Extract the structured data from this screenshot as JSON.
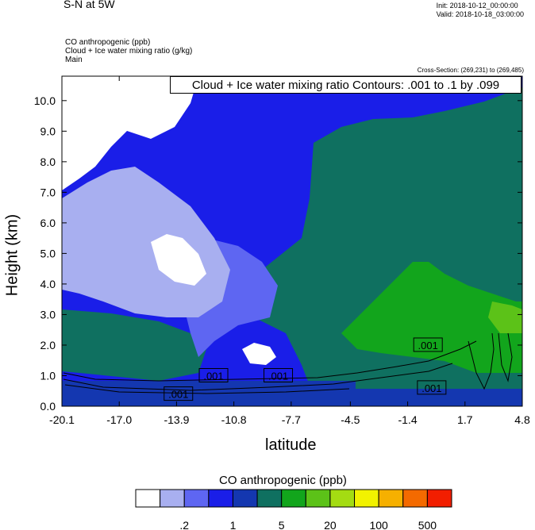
{
  "header": {
    "title": "S-N at 5W",
    "init": "Init: 2018-10-12_00:00:00",
    "valid": "Valid: 2018-10-18_03:00:00",
    "line1": "CO anthropogenic   (ppb)",
    "line2": "Cloud + Ice water mixing ratio   (g/kg)",
    "line3": "Main",
    "cross_section": "Cross-Section: (269,231) to (269,485)",
    "contour_info": "Cloud + Ice water mixing ratio Contours: .001 to .1 by .099"
  },
  "chart_data": {
    "type": "heatmap",
    "xlabel": "latitude",
    "ylabel": "Height (km)",
    "x_ticks": [
      "-20.1",
      "-17.0",
      "-13.9",
      "-10.8",
      "-7.7",
      "-4.5",
      "-1.4",
      "1.7",
      "4.8"
    ],
    "y_ticks": [
      "0.0",
      "1.0",
      "2.0",
      "3.0",
      "4.0",
      "5.0",
      "6.0",
      "7.0",
      "8.0",
      "9.0",
      "10.0"
    ],
    "xlim": [
      -20.1,
      4.8
    ],
    "ylim": [
      0,
      10.8
    ],
    "colorbar": {
      "title": "CO anthropogenic  (ppb)",
      "colors": [
        "#ffffff",
        "#a8aff0",
        "#5e66f2",
        "#1a1ee8",
        "#1437b0",
        "#0f7060",
        "#12a51c",
        "#5cc218",
        "#a4dc12",
        "#f2f200",
        "#f6b000",
        "#f46a00",
        "#f21e00"
      ],
      "tick_labels": [
        ".2",
        "1",
        "5",
        "20",
        "100",
        "500"
      ],
      "tick_boundaries": [
        2,
        4,
        6,
        8,
        10,
        12
      ]
    },
    "contour_labels": [
      {
        "text": ".001",
        "lat": -11.9,
        "h": 1.0
      },
      {
        "text": ".001",
        "lat": -8.4,
        "h": 1.0
      },
      {
        "text": ".001",
        "lat": -13.8,
        "h": 0.4
      },
      {
        "text": ".001",
        "lat": -0.3,
        "h": 2.0
      },
      {
        "text": ".001",
        "lat": -0.1,
        "h": 0.6
      }
    ]
  }
}
